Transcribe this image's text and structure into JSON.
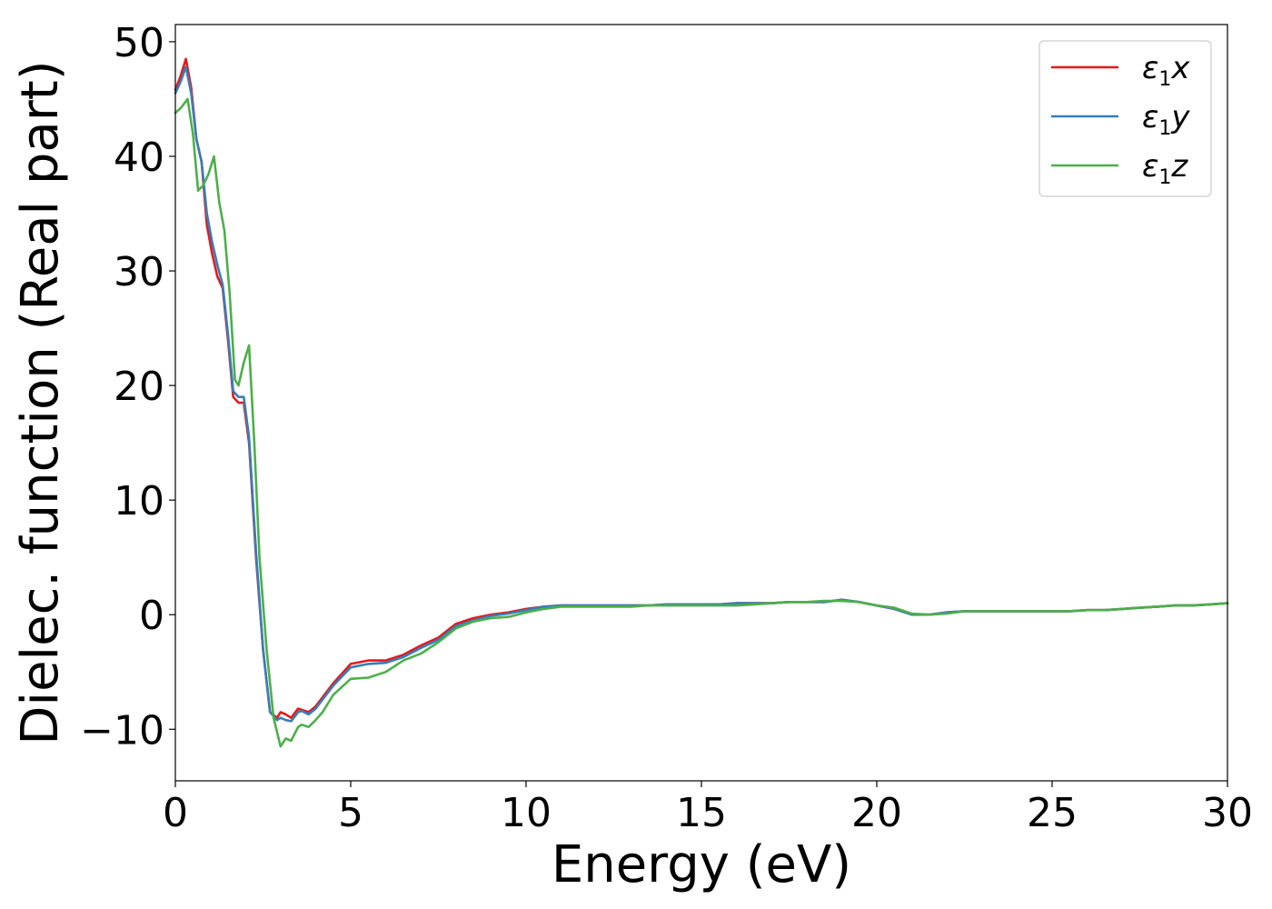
{
  "chart_data": {
    "type": "line",
    "title": "",
    "xlabel": "Energy (eV)",
    "ylabel": "Dielec. function (Real part)",
    "xlim": [
      0,
      30
    ],
    "ylim": [
      -14.5,
      51.5
    ],
    "xticks": [
      0,
      5,
      10,
      15,
      20,
      25,
      30
    ],
    "xtick_labels": [
      "0",
      "5",
      "10",
      "15",
      "20",
      "25",
      "30"
    ],
    "yticks": [
      -10,
      0,
      10,
      20,
      30,
      40,
      50
    ],
    "ytick_labels": [
      "−10",
      "0",
      "10",
      "20",
      "30",
      "40",
      "50"
    ],
    "grid": false,
    "legend_position": "top-right",
    "series": [
      {
        "name": "ε1x",
        "legend_symbol": "ε",
        "legend_subscript": "1",
        "legend_suffix": "x",
        "color": "#e41a1c",
        "x": [
          0,
          0.15,
          0.3,
          0.45,
          0.6,
          0.75,
          0.9,
          1.05,
          1.2,
          1.35,
          1.5,
          1.65,
          1.8,
          1.95,
          2.1,
          2.3,
          2.5,
          2.7,
          2.9,
          3.0,
          3.15,
          3.3,
          3.5,
          3.6,
          3.8,
          4.0,
          4.2,
          4.5,
          5.0,
          5.5,
          6.0,
          6.5,
          7.0,
          7.5,
          8.0,
          8.5,
          9.0,
          9.5,
          10.0,
          10.5,
          11.0,
          11.5,
          12.0,
          12.5,
          13.0,
          13.5,
          14.0,
          14.5,
          15.0,
          15.5,
          16.0,
          16.5,
          17.0,
          17.5,
          18.0,
          18.5,
          19.0,
          19.5,
          20.0,
          20.5,
          21.0,
          21.5,
          22.0,
          22.5,
          23.0,
          23.5,
          24.0,
          24.5,
          25.0,
          25.5,
          26.0,
          26.5,
          27.0,
          27.5,
          28.0,
          28.5,
          29.0,
          29.5,
          30.0
        ],
        "y": [
          45.8,
          47.0,
          48.5,
          46.0,
          41.5,
          39.5,
          34.0,
          31.5,
          29.5,
          28.5,
          24.0,
          19.0,
          18.5,
          18.5,
          15.0,
          5.0,
          -3.0,
          -8.5,
          -9.0,
          -8.5,
          -8.7,
          -9.0,
          -8.2,
          -8.3,
          -8.5,
          -8.0,
          -7.2,
          -6.0,
          -4.3,
          -4.0,
          -4.0,
          -3.5,
          -2.7,
          -2.0,
          -0.8,
          -0.3,
          0.0,
          0.2,
          0.5,
          0.7,
          0.8,
          0.8,
          0.8,
          0.8,
          0.8,
          0.8,
          0.9,
          0.9,
          0.9,
          0.9,
          1.0,
          1.0,
          1.0,
          1.1,
          1.1,
          1.1,
          1.3,
          1.1,
          0.8,
          0.5,
          0.0,
          0.0,
          0.2,
          0.3,
          0.3,
          0.3,
          0.3,
          0.3,
          0.3,
          0.3,
          0.4,
          0.4,
          0.5,
          0.6,
          0.7,
          0.8,
          0.8,
          0.9,
          1.0
        ]
      },
      {
        "name": "ε1y",
        "legend_symbol": "ε",
        "legend_subscript": "1",
        "legend_suffix": "y",
        "color": "#377eb8",
        "x": [
          0,
          0.15,
          0.3,
          0.45,
          0.6,
          0.75,
          0.9,
          1.05,
          1.2,
          1.35,
          1.5,
          1.65,
          1.8,
          1.95,
          2.1,
          2.3,
          2.5,
          2.7,
          2.9,
          3.0,
          3.15,
          3.3,
          3.5,
          3.6,
          3.8,
          4.0,
          4.2,
          4.5,
          5.0,
          5.5,
          6.0,
          6.5,
          7.0,
          7.5,
          8.0,
          8.5,
          9.0,
          9.5,
          10.0,
          10.5,
          11.0,
          11.5,
          12.0,
          12.5,
          13.0,
          13.5,
          14.0,
          14.5,
          15.0,
          15.5,
          16.0,
          16.5,
          17.0,
          17.5,
          18.0,
          18.5,
          19.0,
          19.5,
          20.0,
          20.5,
          21.0,
          21.5,
          22.0,
          22.5,
          23.0,
          23.5,
          24.0,
          24.5,
          25.0,
          25.5,
          26.0,
          26.5,
          27.0,
          27.5,
          28.0,
          28.5,
          29.0,
          29.5,
          30.0
        ],
        "y": [
          45.5,
          46.5,
          47.8,
          45.5,
          41.5,
          39.5,
          35.0,
          32.5,
          30.5,
          28.8,
          24.5,
          19.5,
          19.0,
          19.0,
          15.5,
          5.5,
          -3.0,
          -8.5,
          -9.2,
          -9.0,
          -9.2,
          -9.3,
          -8.5,
          -8.4,
          -8.7,
          -8.2,
          -7.4,
          -6.2,
          -4.6,
          -4.3,
          -4.2,
          -3.7,
          -2.9,
          -2.2,
          -1.0,
          -0.5,
          -0.1,
          0.1,
          0.4,
          0.7,
          0.8,
          0.8,
          0.8,
          0.8,
          0.8,
          0.8,
          0.9,
          0.9,
          0.9,
          0.9,
          1.0,
          1.0,
          1.0,
          1.1,
          1.1,
          1.1,
          1.3,
          1.1,
          0.8,
          0.5,
          0.0,
          0.0,
          0.2,
          0.3,
          0.3,
          0.3,
          0.3,
          0.3,
          0.3,
          0.3,
          0.4,
          0.4,
          0.5,
          0.6,
          0.7,
          0.8,
          0.8,
          0.9,
          1.0
        ]
      },
      {
        "name": "ε1z",
        "legend_symbol": "ε",
        "legend_subscript": "1",
        "legend_suffix": "z",
        "color": "#4daf4a",
        "x": [
          0,
          0.15,
          0.35,
          0.5,
          0.65,
          0.8,
          0.95,
          1.1,
          1.25,
          1.4,
          1.55,
          1.7,
          1.8,
          1.95,
          2.1,
          2.25,
          2.4,
          2.6,
          2.8,
          3.0,
          3.15,
          3.3,
          3.5,
          3.6,
          3.8,
          4.0,
          4.2,
          4.5,
          5.0,
          5.5,
          6.0,
          6.5,
          7.0,
          7.5,
          8.0,
          8.5,
          9.0,
          9.5,
          10.0,
          10.5,
          11.0,
          11.5,
          12.0,
          12.5,
          13.0,
          13.5,
          14.0,
          14.5,
          15.0,
          15.5,
          16.0,
          16.5,
          17.0,
          17.5,
          18.0,
          18.5,
          19.0,
          19.5,
          20.0,
          20.5,
          21.0,
          21.5,
          22.0,
          22.5,
          23.0,
          23.5,
          24.0,
          24.5,
          25.0,
          25.5,
          26.0,
          26.5,
          27.0,
          27.5,
          28.0,
          28.5,
          29.0,
          29.5,
          30.0
        ],
        "y": [
          43.8,
          44.2,
          45.0,
          42.0,
          37.0,
          37.5,
          38.5,
          40.0,
          36.0,
          33.5,
          28.0,
          20.5,
          20.0,
          22.0,
          23.5,
          15.0,
          5.0,
          -3.0,
          -9.0,
          -11.5,
          -10.8,
          -11.0,
          -9.8,
          -9.6,
          -9.8,
          -9.2,
          -8.5,
          -7.0,
          -5.6,
          -5.5,
          -5.0,
          -4.0,
          -3.4,
          -2.4,
          -1.2,
          -0.6,
          -0.3,
          -0.2,
          0.2,
          0.5,
          0.7,
          0.7,
          0.7,
          0.7,
          0.7,
          0.8,
          0.8,
          0.8,
          0.8,
          0.8,
          0.8,
          0.9,
          1.0,
          1.1,
          1.1,
          1.2,
          1.2,
          1.1,
          0.8,
          0.6,
          0.1,
          0.0,
          0.1,
          0.3,
          0.3,
          0.3,
          0.3,
          0.3,
          0.3,
          0.3,
          0.4,
          0.4,
          0.5,
          0.6,
          0.7,
          0.8,
          0.8,
          0.9,
          1.0
        ]
      }
    ]
  }
}
